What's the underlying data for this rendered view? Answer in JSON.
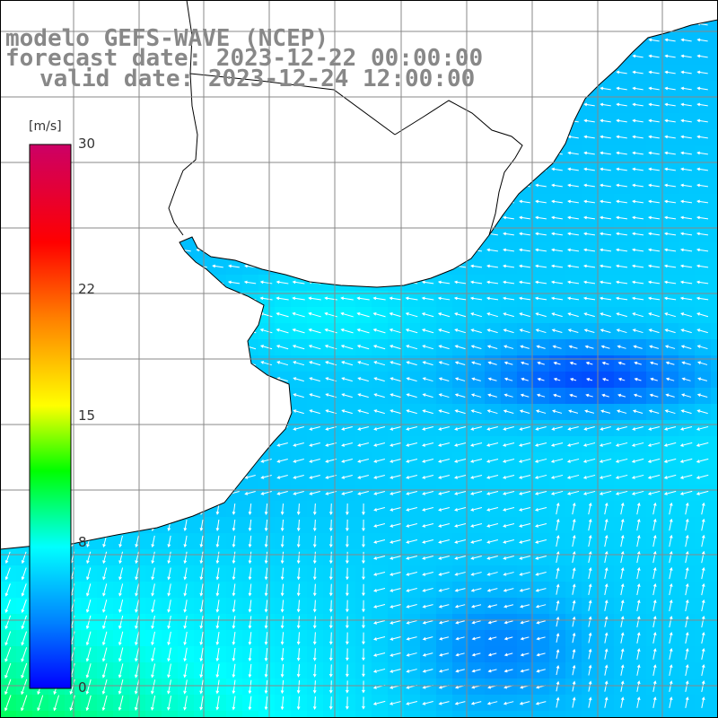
{
  "title": {
    "line1": "modelo GEFS-WAVE (NCEP)",
    "line2": "forecast date: 2023-12-22 00:00:00",
    "line3": "valid date: 2023-12-24 12:00:00"
  },
  "colorbar": {
    "unit": "[m/s]",
    "min": 0,
    "max": 30,
    "ticks": [
      {
        "value": 30,
        "label": "30"
      },
      {
        "value": 22,
        "label": "22"
      },
      {
        "value": 15,
        "label": "15"
      },
      {
        "value": 8,
        "label": "8"
      },
      {
        "value": 0,
        "label": "0"
      }
    ],
    "colors": [
      "#0000ff",
      "#0080ff",
      "#00ffff",
      "#00ff00",
      "#ffff00",
      "#ff8000",
      "#ff0000",
      "#cc0066"
    ]
  },
  "map": {
    "field": "wind speed",
    "land_color": "#ffffff",
    "grid_color": "#888888",
    "wind_regions": [
      {
        "region": "south-west coast",
        "speed": 10,
        "direction": "north-north-east to south-south-west"
      },
      {
        "region": "central sea",
        "speed": 6,
        "direction": "east to west"
      },
      {
        "region": "eastern low-wind core",
        "speed": 2,
        "direction": "east to west"
      },
      {
        "region": "south-east",
        "speed": 5,
        "direction": "south to north"
      }
    ]
  }
}
